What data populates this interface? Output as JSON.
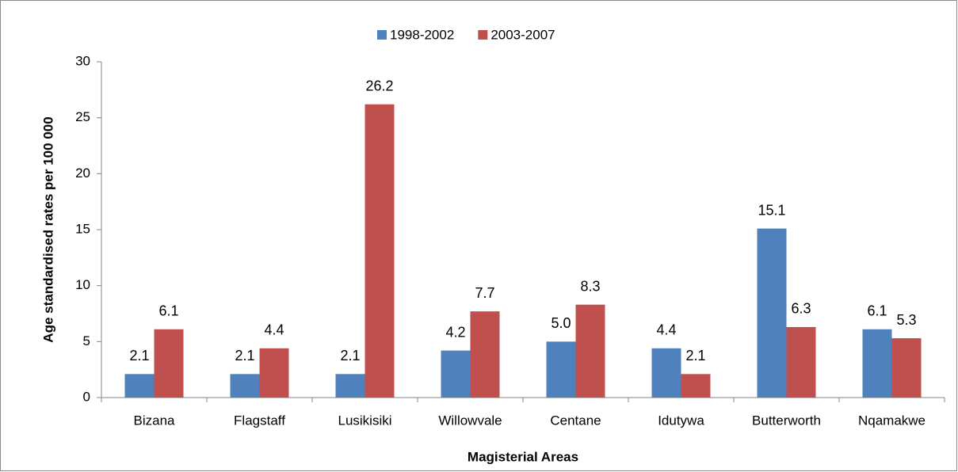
{
  "chart_data": {
    "type": "bar",
    "x_label": "Magisterial Areas",
    "y_label": "Age standardised rates per 100 000",
    "categories": [
      "Bizana",
      "Flagstaff",
      "Lusikisiki",
      "Willowvale",
      "Centane",
      "Idutywa",
      "Butterworth",
      "Nqamakwe"
    ],
    "series": [
      {
        "name": "1998-2002",
        "color": "#4f81bd",
        "values": [
          2.1,
          2.1,
          2.1,
          4.2,
          5,
          4.4,
          15.1,
          6.1
        ],
        "value_labels": [
          "2.1",
          "2.1",
          "2.1",
          "4.2",
          "5.0",
          "4.4",
          "15.1",
          "6.1"
        ]
      },
      {
        "name": "2003-2007",
        "color": "#c0504d",
        "values": [
          6.1,
          4.4,
          26.2,
          7.7,
          8.3,
          2.1,
          6.3,
          5.3
        ],
        "value_labels": [
          "6.1",
          "4.4",
          "26.2",
          "7.7",
          "8.3",
          "2.1",
          "6.3",
          "5.3"
        ]
      }
    ],
    "ylim": [
      0,
      30
    ],
    "yticks": [
      0,
      5,
      10,
      15,
      20,
      25,
      30
    ],
    "grid": false,
    "legend": "top"
  }
}
